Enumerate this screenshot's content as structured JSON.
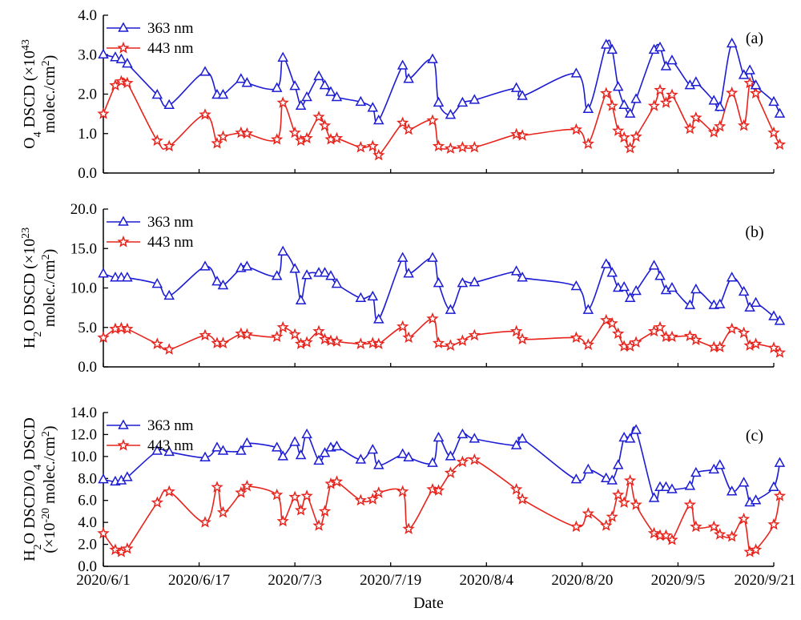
{
  "figure": {
    "x_title": "Date"
  },
  "x_ticks": [
    "2020/6/1",
    "2020/6/17",
    "2020/7/3",
    "2020/7/19",
    "2020/8/4",
    "2020/8/20",
    "2020/9/5",
    "2020/9/21"
  ],
  "x_tick_days": [
    0,
    16,
    32,
    48,
    64,
    80,
    96,
    112
  ],
  "colors": {
    "s363": "#1c1cd4",
    "s443": "#e8231c",
    "axis": "#000000"
  },
  "chart_data": [
    {
      "type": "line",
      "panel_label": "(a)",
      "ylabel_lines": [
        {
          "parts": [
            {
              "t": "O"
            },
            {
              "t": "4",
              "s": "sub"
            },
            {
              "t": " DSCD (×10"
            },
            {
              "t": "43",
              "s": "sup"
            }
          ]
        },
        {
          "parts": [
            {
              "t": "molec./cm"
            },
            {
              "t": "2",
              "s": "sup"
            },
            {
              "t": ")"
            }
          ]
        }
      ],
      "ylim": [
        0,
        4
      ],
      "yticks": [
        "0.0",
        "1.0",
        "2.0",
        "3.0",
        "4.0"
      ],
      "ytick_values": [
        0,
        1,
        2,
        3,
        4
      ],
      "legend_position": "top-left",
      "series": [
        {
          "name": "363 nm",
          "marker": "triangle",
          "x": [
            "2020/6/1",
            "2020/6/3",
            "2020/6/4",
            "2020/6/5",
            "2020/6/10",
            "2020/6/12",
            "2020/6/18",
            "2020/6/20",
            "2020/6/21",
            "2020/6/24",
            "2020/6/25",
            "2020/6/30",
            "2020/7/1",
            "2020/7/3",
            "2020/7/4",
            "2020/7/5",
            "2020/7/7",
            "2020/7/8",
            "2020/7/9",
            "2020/7/10",
            "2020/7/14",
            "2020/7/16",
            "2020/7/17",
            "2020/7/21",
            "2020/7/22",
            "2020/7/26",
            "2020/7/27",
            "2020/7/29",
            "2020/7/31",
            "2020/8/2",
            "2020/8/9",
            "2020/8/10",
            "2020/8/19",
            "2020/8/21",
            "2020/8/24",
            "2020/8/25",
            "2020/8/26",
            "2020/8/27",
            "2020/8/28",
            "2020/8/29",
            "2020/9/1",
            "2020/9/2",
            "2020/9/3",
            "2020/9/4",
            "2020/9/7",
            "2020/9/8",
            "2020/9/11",
            "2020/9/12",
            "2020/9/14",
            "2020/9/16",
            "2020/9/17",
            "2020/9/18",
            "2020/9/21",
            "2020/9/22"
          ],
          "y": [
            3.0,
            2.93,
            2.88,
            2.77,
            1.98,
            1.72,
            2.56,
            1.98,
            1.98,
            2.38,
            2.28,
            2.15,
            2.92,
            2.2,
            1.7,
            1.92,
            2.45,
            2.22,
            2.05,
            1.92,
            1.8,
            1.65,
            1.33,
            2.72,
            2.38,
            2.88,
            1.78,
            1.47,
            1.78,
            1.85,
            2.15,
            1.95,
            2.52,
            1.62,
            3.25,
            3.12,
            2.18,
            1.72,
            1.5,
            1.87,
            3.12,
            3.18,
            2.7,
            2.85,
            2.22,
            2.3,
            1.83,
            1.67,
            3.28,
            2.48,
            2.6,
            2.22,
            1.8,
            1.5
          ]
        },
        {
          "name": "443 nm",
          "marker": "star",
          "x": [
            "2020/6/1",
            "2020/6/3",
            "2020/6/4",
            "2020/6/5",
            "2020/6/10",
            "2020/6/12",
            "2020/6/18",
            "2020/6/20",
            "2020/6/21",
            "2020/6/24",
            "2020/6/25",
            "2020/6/30",
            "2020/7/1",
            "2020/7/3",
            "2020/7/4",
            "2020/7/5",
            "2020/7/7",
            "2020/7/8",
            "2020/7/9",
            "2020/7/10",
            "2020/7/14",
            "2020/7/16",
            "2020/7/17",
            "2020/7/21",
            "2020/7/22",
            "2020/7/26",
            "2020/7/27",
            "2020/7/29",
            "2020/7/31",
            "2020/8/2",
            "2020/8/9",
            "2020/8/10",
            "2020/8/19",
            "2020/8/21",
            "2020/8/24",
            "2020/8/25",
            "2020/8/26",
            "2020/8/27",
            "2020/8/28",
            "2020/8/29",
            "2020/9/1",
            "2020/9/2",
            "2020/9/3",
            "2020/9/4",
            "2020/9/7",
            "2020/9/8",
            "2020/9/11",
            "2020/9/12",
            "2020/9/14",
            "2020/9/16",
            "2020/9/17",
            "2020/9/18",
            "2020/9/21",
            "2020/9/22"
          ],
          "y": [
            1.5,
            2.22,
            2.32,
            2.28,
            0.82,
            0.68,
            1.48,
            0.75,
            0.92,
            1.02,
            1.0,
            0.85,
            1.78,
            1.02,
            0.82,
            0.88,
            1.42,
            1.2,
            0.85,
            0.88,
            0.65,
            0.68,
            0.45,
            1.27,
            1.1,
            1.33,
            0.68,
            0.62,
            0.65,
            0.65,
            0.98,
            0.95,
            1.1,
            0.74,
            2.02,
            1.7,
            1.07,
            0.9,
            0.63,
            0.92,
            1.7,
            2.1,
            1.78,
            1.98,
            1.12,
            1.4,
            1.03,
            1.18,
            2.03,
            1.2,
            2.28,
            2.02,
            1.02,
            0.72
          ]
        }
      ]
    },
    {
      "type": "line",
      "panel_label": "(b)",
      "ylabel_lines": [
        {
          "parts": [
            {
              "t": "H"
            },
            {
              "t": "2",
              "s": "sub"
            },
            {
              "t": "O DSCD  (×10"
            },
            {
              "t": "23",
              "s": "sup"
            }
          ]
        },
        {
          "parts": [
            {
              "t": "molec./cm"
            },
            {
              "t": "2",
              "s": "sup"
            },
            {
              "t": ")"
            }
          ]
        }
      ],
      "ylim": [
        0,
        20
      ],
      "yticks": [
        "0.0",
        "5.0",
        "10.0",
        "15.0",
        "20.0"
      ],
      "ytick_values": [
        0,
        5,
        10,
        15,
        20
      ],
      "legend_position": "top-left",
      "series": [
        {
          "name": "363 nm",
          "marker": "triangle",
          "x": [
            "2020/6/1",
            "2020/6/3",
            "2020/6/4",
            "2020/6/5",
            "2020/6/10",
            "2020/6/12",
            "2020/6/18",
            "2020/6/20",
            "2020/6/21",
            "2020/6/24",
            "2020/6/25",
            "2020/6/30",
            "2020/7/1",
            "2020/7/3",
            "2020/7/4",
            "2020/7/5",
            "2020/7/7",
            "2020/7/8",
            "2020/7/9",
            "2020/7/10",
            "2020/7/14",
            "2020/7/16",
            "2020/7/17",
            "2020/7/21",
            "2020/7/22",
            "2020/7/26",
            "2020/7/27",
            "2020/7/29",
            "2020/7/31",
            "2020/8/2",
            "2020/8/9",
            "2020/8/10",
            "2020/8/19",
            "2020/8/21",
            "2020/8/24",
            "2020/8/25",
            "2020/8/26",
            "2020/8/27",
            "2020/8/28",
            "2020/8/29",
            "2020/9/1",
            "2020/9/2",
            "2020/9/3",
            "2020/9/4",
            "2020/9/7",
            "2020/9/8",
            "2020/9/11",
            "2020/9/12",
            "2020/9/14",
            "2020/9/16",
            "2020/9/17",
            "2020/9/18",
            "2020/9/21",
            "2020/9/22"
          ],
          "y": [
            11.8,
            11.3,
            11.3,
            11.3,
            10.5,
            9.0,
            12.7,
            10.8,
            10.3,
            12.5,
            12.7,
            11.5,
            14.6,
            12.4,
            8.4,
            11.6,
            11.9,
            11.9,
            11.5,
            10.5,
            8.7,
            8.9,
            6.0,
            13.8,
            11.8,
            13.8,
            10.6,
            7.2,
            10.6,
            10.7,
            12.1,
            11.3,
            10.2,
            7.2,
            13.0,
            11.9,
            10.0,
            10.1,
            8.7,
            9.6,
            12.8,
            11.5,
            9.7,
            10.0,
            7.8,
            9.8,
            7.8,
            7.9,
            11.3,
            9.5,
            7.5,
            8.1,
            6.4,
            5.8
          ]
        },
        {
          "name": "443 nm",
          "marker": "star",
          "x": [
            "2020/6/1",
            "2020/6/3",
            "2020/6/4",
            "2020/6/5",
            "2020/6/10",
            "2020/6/12",
            "2020/6/18",
            "2020/6/20",
            "2020/6/21",
            "2020/6/24",
            "2020/6/25",
            "2020/6/30",
            "2020/7/1",
            "2020/7/3",
            "2020/7/4",
            "2020/7/5",
            "2020/7/7",
            "2020/7/8",
            "2020/7/9",
            "2020/7/10",
            "2020/7/14",
            "2020/7/16",
            "2020/7/17",
            "2020/7/21",
            "2020/7/22",
            "2020/7/26",
            "2020/7/27",
            "2020/7/29",
            "2020/7/31",
            "2020/8/2",
            "2020/8/9",
            "2020/8/10",
            "2020/8/19",
            "2020/8/21",
            "2020/8/24",
            "2020/8/25",
            "2020/8/26",
            "2020/8/27",
            "2020/8/28",
            "2020/8/29",
            "2020/9/1",
            "2020/9/2",
            "2020/9/3",
            "2020/9/4",
            "2020/9/7",
            "2020/9/8",
            "2020/9/11",
            "2020/9/12",
            "2020/9/14",
            "2020/9/16",
            "2020/9/17",
            "2020/9/18",
            "2020/9/21",
            "2020/9/22"
          ],
          "y": [
            3.7,
            4.8,
            4.9,
            4.8,
            2.9,
            2.2,
            4.0,
            3.0,
            3.0,
            4.2,
            4.1,
            3.8,
            5.0,
            4.1,
            2.9,
            3.1,
            4.5,
            3.5,
            3.3,
            3.2,
            2.9,
            3.0,
            2.9,
            5.1,
            3.7,
            6.1,
            3.0,
            2.7,
            3.3,
            4.0,
            4.5,
            3.5,
            3.7,
            2.8,
            5.9,
            5.5,
            4.2,
            2.6,
            2.6,
            3.1,
            4.5,
            5.0,
            3.8,
            3.8,
            3.9,
            3.4,
            2.5,
            2.5,
            4.8,
            4.3,
            2.7,
            2.9,
            2.4,
            1.8
          ]
        }
      ]
    },
    {
      "type": "line",
      "panel_label": "(c)",
      "ylabel_lines": [
        {
          "parts": [
            {
              "t": "H"
            },
            {
              "t": "2",
              "s": "sub"
            },
            {
              "t": "O DSCD/O"
            },
            {
              "t": "4",
              "s": "sub"
            },
            {
              "t": " DSCD"
            }
          ]
        },
        {
          "parts": [
            {
              "t": "(×10"
            },
            {
              "t": "-20",
              "s": "sup"
            },
            {
              "t": " molec./cm"
            },
            {
              "t": "2",
              "s": "sup"
            },
            {
              "t": ")"
            }
          ]
        }
      ],
      "ylim": [
        0,
        14
      ],
      "yticks": [
        "0.0",
        "2.0",
        "4.0",
        "6.0",
        "8.0",
        "10.0",
        "12.0",
        "14.0"
      ],
      "ytick_values": [
        0,
        2,
        4,
        6,
        8,
        10,
        12,
        14
      ],
      "legend_position": "top-left",
      "series": [
        {
          "name": "363 nm",
          "marker": "triangle",
          "x": [
            "2020/6/1",
            "2020/6/3",
            "2020/6/4",
            "2020/6/5",
            "2020/6/10",
            "2020/6/12",
            "2020/6/18",
            "2020/6/20",
            "2020/6/21",
            "2020/6/24",
            "2020/6/25",
            "2020/6/30",
            "2020/7/1",
            "2020/7/3",
            "2020/7/4",
            "2020/7/5",
            "2020/7/7",
            "2020/7/8",
            "2020/7/9",
            "2020/7/10",
            "2020/7/14",
            "2020/7/16",
            "2020/7/17",
            "2020/7/21",
            "2020/7/22",
            "2020/7/26",
            "2020/7/27",
            "2020/7/29",
            "2020/7/31",
            "2020/8/2",
            "2020/8/9",
            "2020/8/10",
            "2020/8/19",
            "2020/8/21",
            "2020/8/24",
            "2020/8/25",
            "2020/8/26",
            "2020/8/27",
            "2020/8/28",
            "2020/8/29",
            "2020/9/1",
            "2020/9/2",
            "2020/9/3",
            "2020/9/4",
            "2020/9/7",
            "2020/9/8",
            "2020/9/11",
            "2020/9/12",
            "2020/9/14",
            "2020/9/16",
            "2020/9/17",
            "2020/9/18",
            "2020/9/21",
            "2020/9/22"
          ],
          "y": [
            7.9,
            7.7,
            7.8,
            8.1,
            10.5,
            10.4,
            9.9,
            10.8,
            10.5,
            10.5,
            11.2,
            10.8,
            10.0,
            11.3,
            10.1,
            12.0,
            9.6,
            10.3,
            10.8,
            10.9,
            9.7,
            10.6,
            9.2,
            10.2,
            9.9,
            9.4,
            11.7,
            10.0,
            12.0,
            11.6,
            11.0,
            11.6,
            7.9,
            8.8,
            8.0,
            7.8,
            9.2,
            11.7,
            11.6,
            12.4,
            6.2,
            7.2,
            7.2,
            7.0,
            7.3,
            8.5,
            8.8,
            9.2,
            6.8,
            7.6,
            5.8,
            6.0,
            7.2,
            9.4
          ]
        },
        {
          "name": "443 nm",
          "marker": "star",
          "x": [
            "2020/6/1",
            "2020/6/3",
            "2020/6/4",
            "2020/6/5",
            "2020/6/10",
            "2020/6/12",
            "2020/6/18",
            "2020/6/20",
            "2020/6/21",
            "2020/6/24",
            "2020/6/25",
            "2020/6/30",
            "2020/7/1",
            "2020/7/3",
            "2020/7/4",
            "2020/7/5",
            "2020/7/7",
            "2020/7/8",
            "2020/7/9",
            "2020/7/10",
            "2020/7/14",
            "2020/7/16",
            "2020/7/17",
            "2020/7/21",
            "2020/7/22",
            "2020/7/26",
            "2020/7/27",
            "2020/7/29",
            "2020/7/31",
            "2020/8/2",
            "2020/8/9",
            "2020/8/10",
            "2020/8/19",
            "2020/8/21",
            "2020/8/24",
            "2020/8/25",
            "2020/8/26",
            "2020/8/27",
            "2020/8/28",
            "2020/8/29",
            "2020/9/1",
            "2020/9/2",
            "2020/9/3",
            "2020/9/4",
            "2020/9/7",
            "2020/9/8",
            "2020/9/11",
            "2020/9/12",
            "2020/9/14",
            "2020/9/16",
            "2020/9/17",
            "2020/9/18",
            "2020/9/21",
            "2020/9/22"
          ],
          "y": [
            3.0,
            1.5,
            1.3,
            1.6,
            5.8,
            6.8,
            4.0,
            7.2,
            4.9,
            6.7,
            7.3,
            6.5,
            4.1,
            6.3,
            5.1,
            6.4,
            3.7,
            5.0,
            7.5,
            7.7,
            6.0,
            6.1,
            6.7,
            6.8,
            3.4,
            7.0,
            6.9,
            8.5,
            9.5,
            9.7,
            7.0,
            6.1,
            3.6,
            4.8,
            3.7,
            4.5,
            6.5,
            5.8,
            7.8,
            5.6,
            3.0,
            2.8,
            2.8,
            2.4,
            5.6,
            3.6,
            3.6,
            2.9,
            2.7,
            4.3,
            1.3,
            1.5,
            3.8,
            6.4
          ]
        }
      ]
    }
  ]
}
